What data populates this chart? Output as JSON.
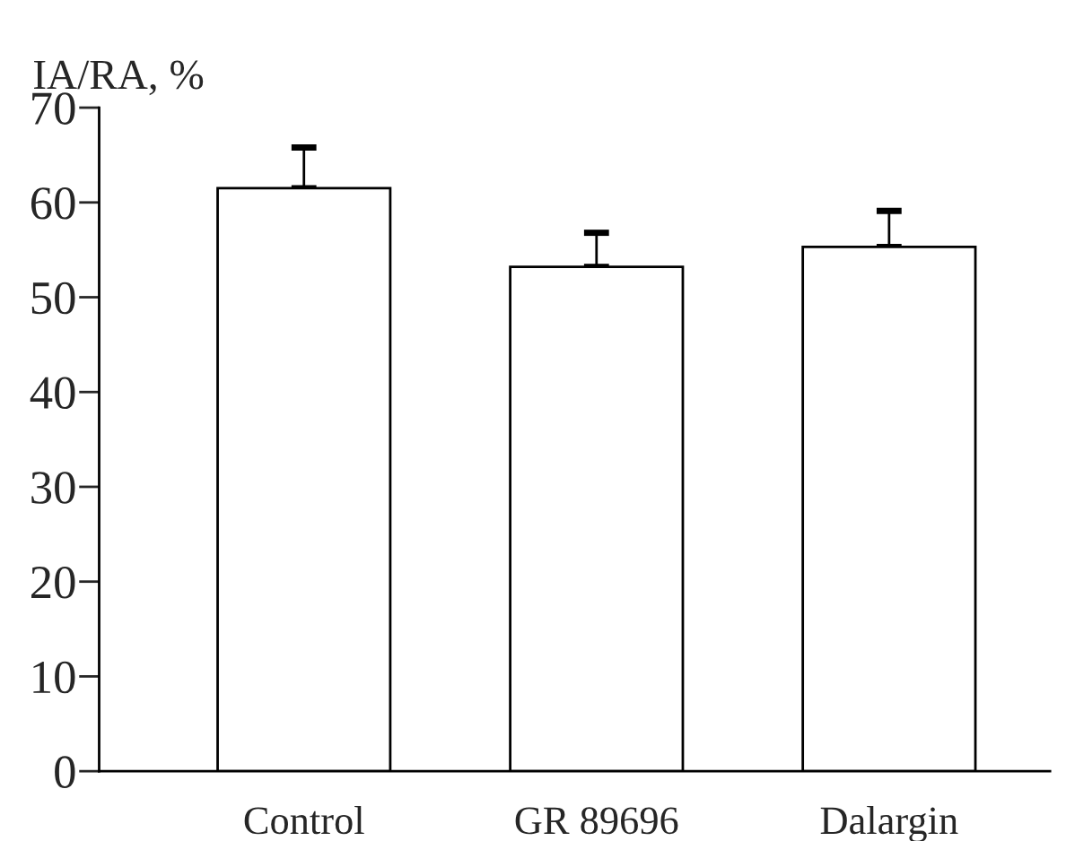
{
  "chart_data": {
    "type": "bar",
    "ylabel": "IA/RA, %",
    "categories": [
      "Control",
      "GR 89696",
      "Dalargin"
    ],
    "values": [
      61.5,
      53.2,
      55.3
    ],
    "errors": [
      [
        61.5,
        65.8
      ],
      [
        53.2,
        56.8
      ],
      [
        55.3,
        59.1
      ]
    ],
    "color": "#ffffff",
    "ylim": [
      0,
      70
    ],
    "yticks": [
      0,
      10,
      20,
      30,
      40,
      50,
      60,
      70
    ],
    "grid": false,
    "legend": false
  }
}
